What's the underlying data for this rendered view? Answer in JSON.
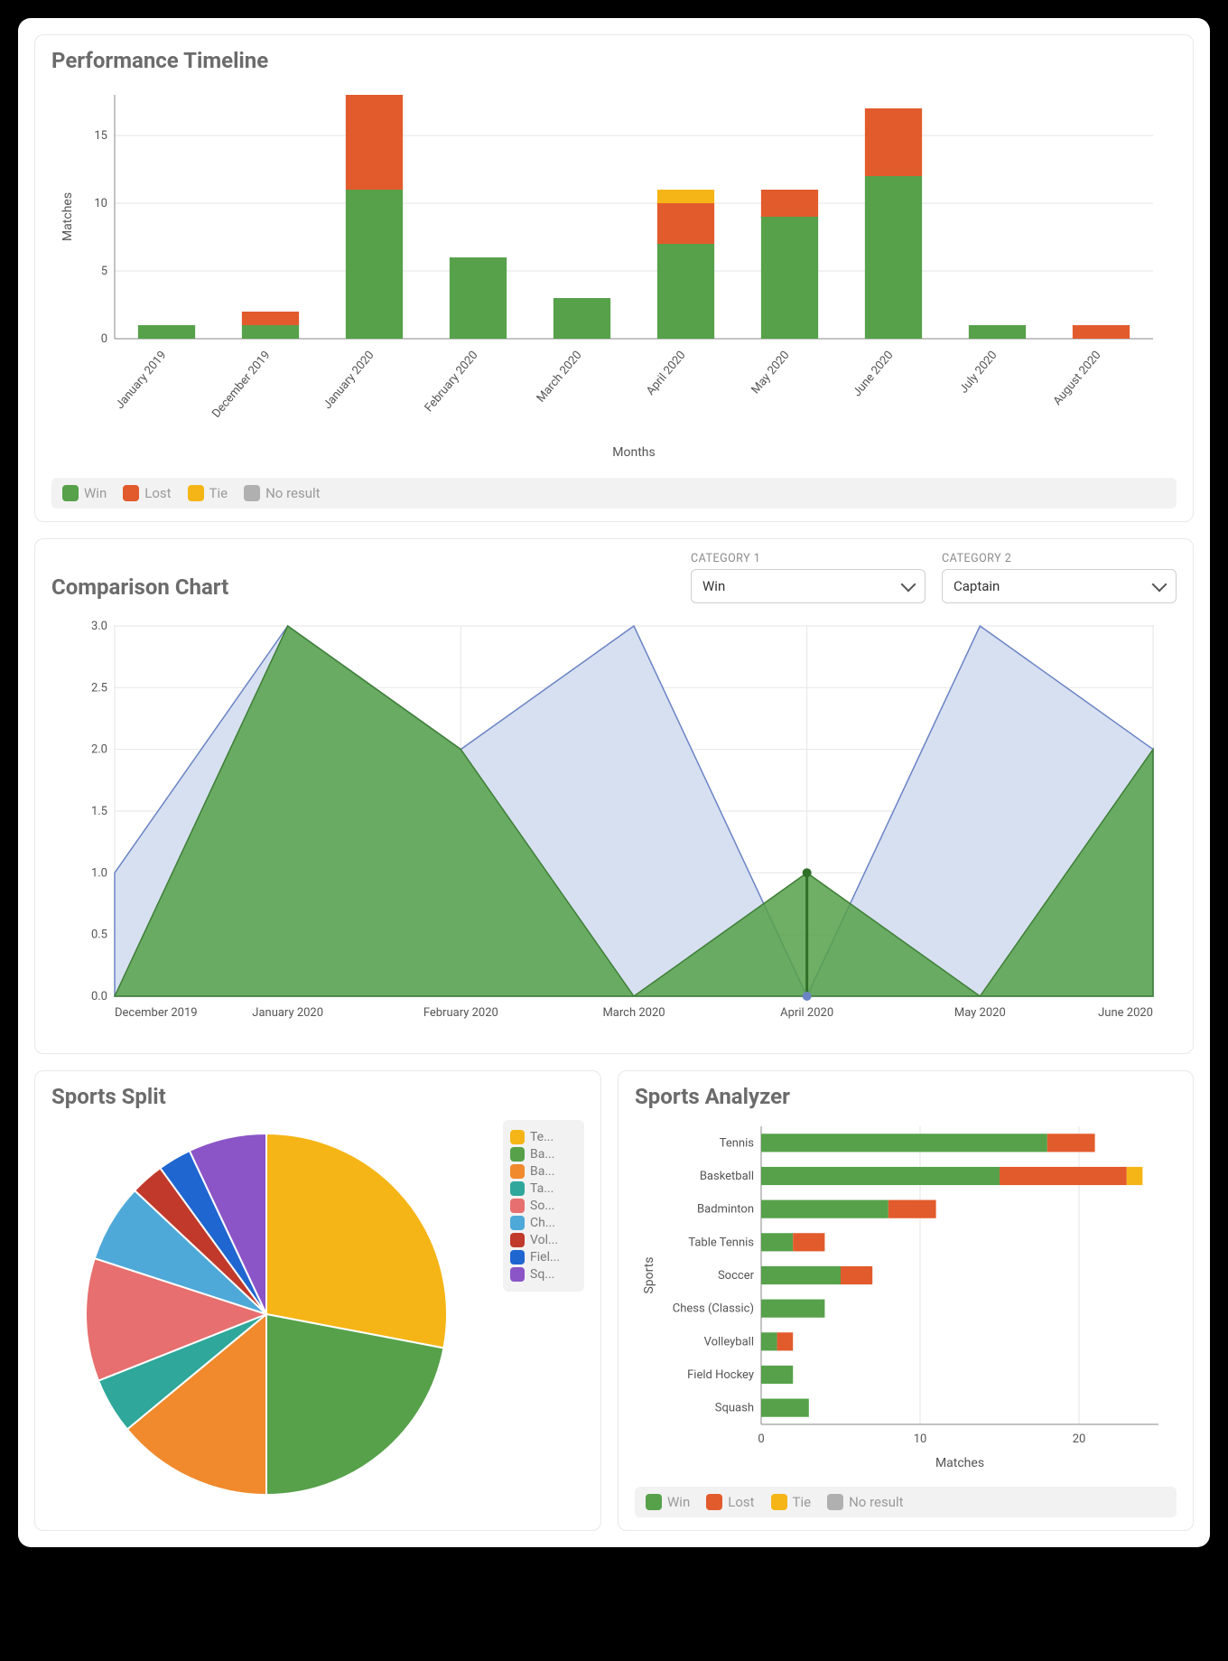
{
  "colors": {
    "win": "#56a14a",
    "lost": "#e25b2c",
    "tie": "#f5b516",
    "no_result": "#b0b0b0",
    "area_secondary": "#d5def0",
    "area_secondary_line": "#6b84c4",
    "grid": "#e6e6e6",
    "axis": "#888888",
    "text": "#555555",
    "card_border": "#e8e8e8",
    "legend_bg": "#f2f2f2",
    "title": "#6b6b6b"
  },
  "timeline": {
    "title": "Performance Timeline",
    "type": "stacked-bar",
    "x_label": "Months",
    "y_label": "Matches",
    "ylim": [
      0,
      18
    ],
    "ytick_step": 5,
    "bar_width": 0.55,
    "categories": [
      "January 2019",
      "December 2019",
      "January 2020",
      "February 2020",
      "March 2020",
      "April 2020",
      "May 2020",
      "June 2020",
      "July 2020",
      "August 2020"
    ],
    "series": [
      {
        "name": "Win",
        "color_key": "win",
        "values": [
          1,
          1,
          11,
          6,
          3,
          7,
          9,
          12,
          1,
          0
        ]
      },
      {
        "name": "Lost",
        "color_key": "lost",
        "values": [
          0,
          1,
          7,
          0,
          0,
          3,
          2,
          5,
          0,
          1
        ]
      },
      {
        "name": "Tie",
        "color_key": "tie",
        "values": [
          0,
          0,
          0,
          0,
          0,
          1,
          0,
          0,
          0,
          0
        ]
      },
      {
        "name": "No result",
        "color_key": "no_result",
        "values": [
          0,
          0,
          0,
          0,
          0,
          0,
          0,
          0,
          0,
          0
        ]
      }
    ],
    "legend": [
      "Win",
      "Lost",
      "Tie",
      "No result"
    ]
  },
  "comparison": {
    "title": "Comparison Chart",
    "type": "area",
    "selectors": {
      "cat1_label": "CATEGORY 1",
      "cat1_value": "Win",
      "cat2_label": "CATEGORY 2",
      "cat2_value": "Captain"
    },
    "categories": [
      "December 2019",
      "January 2020",
      "February 2020",
      "March 2020",
      "April 2020",
      "May 2020",
      "June 2020"
    ],
    "ylim": [
      0,
      3.0
    ],
    "ytick_step": 0.5,
    "series": [
      {
        "name": "Win",
        "fill": "#56a14a",
        "fill_opacity": 0.85,
        "stroke": "#3f7f37",
        "values": [
          0,
          3,
          2,
          0,
          1,
          0,
          2
        ]
      },
      {
        "name": "Captain",
        "fill": "#d5def0",
        "fill_opacity": 0.95,
        "stroke": "#6b84c4",
        "values": [
          1,
          3,
          2,
          3,
          0,
          3,
          2
        ]
      }
    ],
    "marker": {
      "x_index": 4,
      "y": 1,
      "color": "#2f6f28"
    },
    "marker2": {
      "x_index": 4,
      "y": 0,
      "color": "#6b84c4"
    }
  },
  "split": {
    "title": "Sports Split",
    "type": "pie",
    "slices": [
      {
        "label": "Te...",
        "full": "Tennis",
        "value": 28,
        "color": "#f5b516"
      },
      {
        "label": "Ba...",
        "full": "Basketball",
        "value": 22,
        "color": "#56a14a"
      },
      {
        "label": "Ba...",
        "full": "Badminton",
        "value": 14,
        "color": "#f08a2c"
      },
      {
        "label": "Ta...",
        "full": "Table Tennis",
        "value": 5,
        "color": "#2fa79b"
      },
      {
        "label": "So...",
        "full": "Soccer",
        "value": 11,
        "color": "#e76f6f"
      },
      {
        "label": "Ch...",
        "full": "Chess",
        "value": 7,
        "color": "#4fa9d8"
      },
      {
        "label": "Vol...",
        "full": "Volleyball",
        "value": 3,
        "color": "#c0392b"
      },
      {
        "label": "Fiel...",
        "full": "Field Hockey",
        "value": 3,
        "color": "#1f66d1"
      },
      {
        "label": "Sq...",
        "full": "Squash",
        "value": 7,
        "color": "#8b55c7"
      }
    ]
  },
  "analyzer": {
    "title": "Sports Analyzer",
    "type": "stacked-hbar",
    "x_label": "Matches",
    "y_label": "Sports",
    "xlim": [
      0,
      25
    ],
    "xticks": [
      0,
      10,
      20
    ],
    "categories": [
      "Tennis",
      "Basketball",
      "Badminton",
      "Table Tennis",
      "Soccer",
      "Chess (Classic)",
      "Volleyball",
      "Field Hockey",
      "Squash"
    ],
    "series": [
      {
        "name": "Win",
        "color_key": "win",
        "values": [
          18,
          15,
          8,
          2,
          5,
          4,
          1,
          2,
          3
        ]
      },
      {
        "name": "Lost",
        "color_key": "lost",
        "values": [
          3,
          8,
          3,
          2,
          2,
          0,
          1,
          0,
          0
        ]
      },
      {
        "name": "Tie",
        "color_key": "tie",
        "values": [
          0,
          1,
          0,
          0,
          0,
          0,
          0,
          0,
          0
        ]
      },
      {
        "name": "No result",
        "color_key": "no_result",
        "values": [
          0,
          0,
          0,
          0,
          0,
          0,
          0,
          0,
          0
        ]
      }
    ],
    "legend": [
      "Win",
      "Lost",
      "Tie",
      "No result"
    ]
  }
}
